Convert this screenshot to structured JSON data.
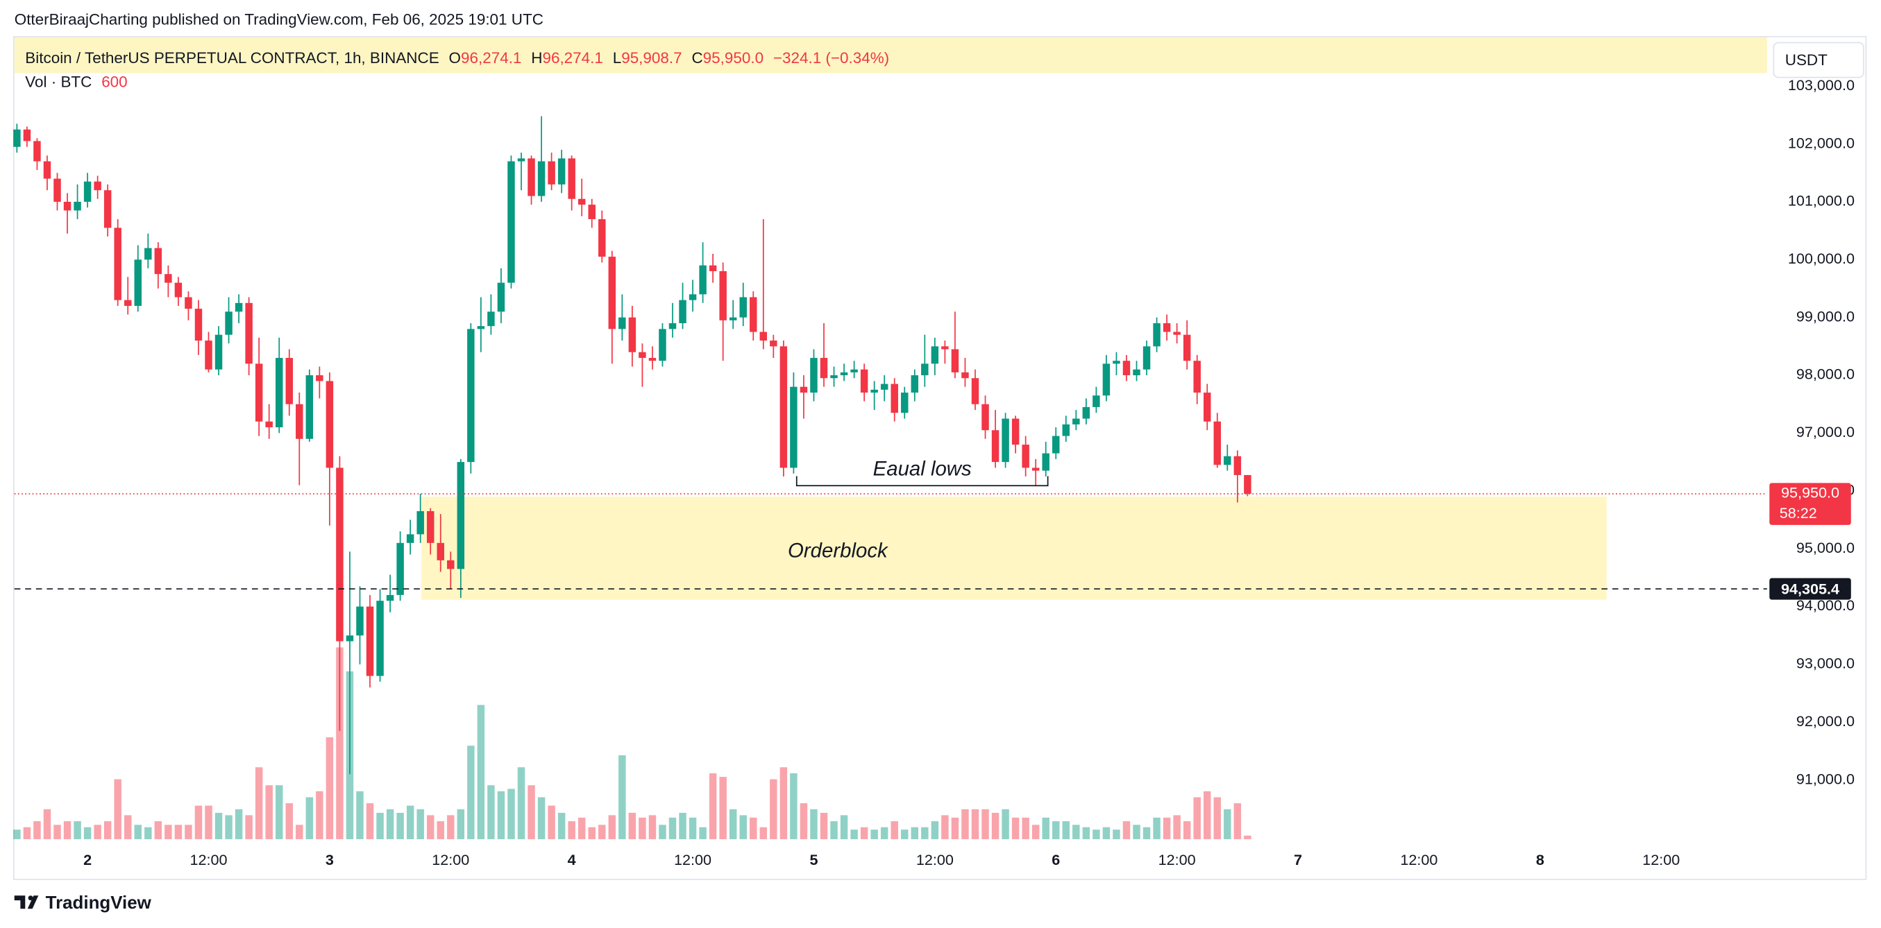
{
  "header": {
    "publisher": "OtterBiraajCharting published on TradingView.com, Feb 06, 2025 19:01 UTC",
    "brand": "TradingView"
  },
  "chart_data": {
    "type": "candlestick",
    "symbol": "Bitcoin / TetherUS PERPETUAL CONTRACT, 1h, BINANCE",
    "ohlc_legend": [
      {
        "label": "O",
        "value": "96,274.1"
      },
      {
        "label": "H",
        "value": "96,274.1"
      },
      {
        "label": "L",
        "value": "95,908.7"
      },
      {
        "label": "C",
        "value": "95,950.0"
      }
    ],
    "change": "−324.1 (−0.34%)",
    "volume_label": "Vol · BTC",
    "currency": "USDT",
    "up_color": "#089981",
    "down_color": "#f23645",
    "ohlc": [
      [
        101950,
        102350,
        101850,
        102250
      ],
      [
        102250,
        102300,
        101950,
        102050
      ],
      [
        102050,
        102100,
        101550,
        101700
      ],
      [
        101700,
        101800,
        101200,
        101400
      ],
      [
        101400,
        101500,
        100850,
        101000
      ],
      [
        101000,
        101150,
        100450,
        100850
      ],
      [
        100850,
        101300,
        100700,
        101000
      ],
      [
        101000,
        101500,
        100900,
        101350
      ],
      [
        101350,
        101450,
        101050,
        101200
      ],
      [
        101200,
        101300,
        100400,
        100550
      ],
      [
        100550,
        100700,
        99200,
        99300
      ],
      [
        99300,
        99700,
        99050,
        99200
      ],
      [
        99200,
        100250,
        99100,
        100000
      ],
      [
        100000,
        100450,
        99850,
        100200
      ],
      [
        100200,
        100300,
        99500,
        99750
      ],
      [
        99750,
        99900,
        99350,
        99600
      ],
      [
        99600,
        99700,
        99200,
        99350
      ],
      [
        99350,
        99450,
        98950,
        99150
      ],
      [
        99150,
        99300,
        98350,
        98600
      ],
      [
        98600,
        98750,
        98050,
        98100
      ],
      [
        98100,
        98850,
        98000,
        98700
      ],
      [
        98700,
        99350,
        98550,
        99100
      ],
      [
        99100,
        99400,
        98900,
        99250
      ],
      [
        99250,
        99350,
        98000,
        98200
      ],
      [
        98200,
        98650,
        96950,
        97200
      ],
      [
        97200,
        97500,
        96900,
        97100
      ],
      [
        97100,
        98650,
        97000,
        98300
      ],
      [
        98300,
        98450,
        97300,
        97500
      ],
      [
        97500,
        97700,
        96100,
        96900
      ],
      [
        96900,
        98100,
        96850,
        98000
      ],
      [
        98000,
        98150,
        97600,
        97900
      ],
      [
        97900,
        98050,
        95400,
        96400
      ],
      [
        96400,
        96600,
        91850,
        93400
      ],
      [
        93400,
        94950,
        91100,
        93500
      ],
      [
        93500,
        94350,
        93000,
        94000
      ],
      [
        94000,
        94200,
        92600,
        92800
      ],
      [
        92800,
        94300,
        92700,
        94100
      ],
      [
        94100,
        94550,
        93900,
        94200
      ],
      [
        94200,
        95300,
        94100,
        95100
      ],
      [
        95100,
        95500,
        94900,
        95250
      ],
      [
        95250,
        95950,
        95100,
        95650
      ],
      [
        95650,
        95700,
        94900,
        95100
      ],
      [
        95100,
        95600,
        94600,
        94800
      ],
      [
        94800,
        94950,
        94300,
        94650
      ],
      [
        94650,
        96550,
        94150,
        96500
      ],
      [
        96500,
        98900,
        96300,
        98800
      ],
      [
        98800,
        99350,
        98400,
        98850
      ],
      [
        98850,
        99400,
        98700,
        99100
      ],
      [
        99100,
        99850,
        98900,
        99600
      ],
      [
        99600,
        101800,
        99500,
        101700
      ],
      [
        101700,
        101850,
        101200,
        101750
      ],
      [
        101750,
        101800,
        100950,
        101100
      ],
      [
        101100,
        102480,
        101000,
        101700
      ],
      [
        101700,
        101850,
        101200,
        101300
      ],
      [
        101300,
        101900,
        101150,
        101750
      ],
      [
        101750,
        101800,
        100850,
        101050
      ],
      [
        101050,
        101400,
        100750,
        100950
      ],
      [
        100950,
        101050,
        100550,
        100700
      ],
      [
        100700,
        100850,
        99950,
        100050
      ],
      [
        100050,
        100150,
        98200,
        98800
      ],
      [
        98800,
        99400,
        98600,
        99000
      ],
      [
        99000,
        99200,
        98150,
        98400
      ],
      [
        98400,
        98550,
        97800,
        98300
      ],
      [
        98300,
        98500,
        98100,
        98250
      ],
      [
        98250,
        98900,
        98150,
        98800
      ],
      [
        98800,
        99250,
        98650,
        98900
      ],
      [
        98900,
        99600,
        98800,
        99300
      ],
      [
        99300,
        99650,
        99100,
        99400
      ],
      [
        99400,
        100300,
        99250,
        99900
      ],
      [
        99900,
        100100,
        99600,
        99800
      ],
      [
        99800,
        99950,
        98250,
        98950
      ],
      [
        98950,
        99300,
        98800,
        99000
      ],
      [
        99000,
        99600,
        98850,
        99350
      ],
      [
        99350,
        99450,
        98600,
        98750
      ],
      [
        98750,
        100700,
        98450,
        98600
      ],
      [
        98600,
        98700,
        98300,
        98500
      ],
      [
        98500,
        98600,
        96250,
        96400
      ],
      [
        96400,
        98050,
        96300,
        97800
      ],
      [
        97800,
        98000,
        97250,
        97700
      ],
      [
        97700,
        98450,
        97550,
        98300
      ],
      [
        98300,
        98900,
        97800,
        97950
      ],
      [
        97950,
        98150,
        97800,
        98000
      ],
      [
        98000,
        98200,
        97900,
        98050
      ],
      [
        98050,
        98250,
        97950,
        98100
      ],
      [
        98100,
        98200,
        97550,
        97700
      ],
      [
        97700,
        97900,
        97400,
        97750
      ],
      [
        97750,
        98000,
        97550,
        97850
      ],
      [
        97850,
        97950,
        97200,
        97350
      ],
      [
        97350,
        97800,
        97250,
        97700
      ],
      [
        97700,
        98100,
        97550,
        98000
      ],
      [
        98000,
        98700,
        97800,
        98200
      ],
      [
        98200,
        98650,
        98000,
        98500
      ],
      [
        98500,
        98600,
        98200,
        98450
      ],
      [
        98450,
        99100,
        97950,
        98050
      ],
      [
        98050,
        98300,
        97800,
        97950
      ],
      [
        97950,
        98100,
        97400,
        97500
      ],
      [
        97500,
        97650,
        96900,
        97050
      ],
      [
        97050,
        97400,
        96400,
        96500
      ],
      [
        96500,
        97350,
        96400,
        97250
      ],
      [
        97250,
        97300,
        96650,
        96800
      ],
      [
        96800,
        96950,
        96250,
        96400
      ],
      [
        96400,
        96550,
        96100,
        96350
      ],
      [
        96350,
        96850,
        96250,
        96650
      ],
      [
        96650,
        97100,
        96550,
        96950
      ],
      [
        96950,
        97300,
        96850,
        97150
      ],
      [
        97150,
        97400,
        97050,
        97250
      ],
      [
        97250,
        97600,
        97150,
        97450
      ],
      [
        97450,
        97800,
        97350,
        97650
      ],
      [
        97650,
        98350,
        97550,
        98200
      ],
      [
        98200,
        98400,
        98000,
        98250
      ],
      [
        98250,
        98350,
        97900,
        98000
      ],
      [
        98000,
        98250,
        97900,
        98100
      ],
      [
        98100,
        98600,
        98000,
        98500
      ],
      [
        98500,
        99000,
        98400,
        98900
      ],
      [
        98900,
        99050,
        98600,
        98750
      ],
      [
        98750,
        98900,
        98550,
        98700
      ],
      [
        98700,
        98950,
        98100,
        98250
      ],
      [
        98250,
        98350,
        97500,
        97700
      ],
      [
        97700,
        97850,
        97050,
        97200
      ],
      [
        97200,
        97350,
        96400,
        96450
      ],
      [
        96450,
        96800,
        96350,
        96600
      ],
      [
        96600,
        96700,
        95800,
        96274.1
      ],
      [
        96274.1,
        96274.1,
        95908.7,
        95950
      ]
    ],
    "volume": [
      1600,
      2000,
      3000,
      5000,
      2400,
      3000,
      3000,
      2000,
      2400,
      3000,
      10000,
      4000,
      2400,
      2000,
      3000,
      2400,
      2400,
      2400,
      5600,
      5600,
      4400,
      4000,
      5000,
      4000,
      12000,
      9000,
      9000,
      6000,
      2400,
      7000,
      8000,
      17000,
      32000,
      28000,
      8000,
      6000,
      4400,
      5000,
      4400,
      5600,
      5000,
      4000,
      3000,
      4000,
      5000,
      15600,
      22400,
      9000,
      8000,
      8400,
      12000,
      9000,
      7000,
      5600,
      4400,
      3000,
      3600,
      2000,
      2400,
      4000,
      14000,
      4400,
      3600,
      4000,
      2400,
      3600,
      4400,
      3600,
      2000,
      11000,
      10400,
      5000,
      4000,
      3600,
      2000,
      10000,
      12000,
      11000,
      6000,
      5000,
      4400,
      3000,
      4000,
      1600,
      2000,
      1600,
      2000,
      3000,
      1600,
      2000,
      2000,
      3000,
      4000,
      3600,
      5000,
      5000,
      5000,
      4400,
      5000,
      3600,
      3600,
      2400,
      3600,
      3000,
      3000,
      2400,
      2000,
      1600,
      2000,
      1600,
      3000,
      2400,
      2000,
      3600,
      3600,
      4000,
      3000,
      7000,
      8000,
      7000,
      5000,
      6000,
      600
    ],
    "vlim": [
      0,
      40000
    ],
    "xlim": [
      -0.25,
      173.5
    ],
    "xticks": [
      {
        "value": 7,
        "label": "2"
      },
      {
        "value": 19,
        "label": "12:00"
      },
      {
        "value": 31,
        "label": "3"
      },
      {
        "value": 43,
        "label": "12:00"
      },
      {
        "value": 55,
        "label": "4"
      },
      {
        "value": 67,
        "label": "12:00"
      },
      {
        "value": 79,
        "label": "5"
      },
      {
        "value": 91,
        "label": "12:00"
      },
      {
        "value": 103,
        "label": "6"
      },
      {
        "value": 115,
        "label": "12:00"
      },
      {
        "value": 127,
        "label": "7"
      },
      {
        "value": 139,
        "label": "12:00"
      },
      {
        "value": 151,
        "label": "8"
      },
      {
        "value": 163,
        "label": "12:00"
      }
    ],
    "ylim": [
      89873,
      103866
    ],
    "yticks": [
      {
        "value": 91000,
        "label": "91,000.0"
      },
      {
        "value": 92000,
        "label": "92,000.0"
      },
      {
        "value": 93000,
        "label": "93,000.0"
      },
      {
        "value": 94000,
        "label": "94,000.0"
      },
      {
        "value": 95000,
        "label": "95,000.0"
      },
      {
        "value": 96000,
        "label": "96,000.0"
      },
      {
        "value": 97000,
        "label": "97,000.0"
      },
      {
        "value": 98000,
        "label": "98,000.0"
      },
      {
        "value": 99000,
        "label": "99,000.0"
      },
      {
        "value": 100000,
        "label": "100,000.0"
      },
      {
        "value": 101000,
        "label": "101,000.0"
      },
      {
        "value": 102000,
        "label": "102,000.0"
      },
      {
        "value": 103000,
        "label": "103,000.0"
      }
    ],
    "last_price": {
      "value": 95950,
      "label": "95,950.0",
      "countdown": "58:22"
    },
    "dashed_line": {
      "value": 94305.4,
      "label": "94,305.4"
    },
    "orderblock": {
      "label": "Orderblock",
      "start": 40.1,
      "end": 157.6,
      "top": 95900,
      "bottom": 94120
    },
    "equal_lows": {
      "label": "Eaual lows",
      "start": 77.3,
      "end": 102.2,
      "value": 96090
    }
  }
}
